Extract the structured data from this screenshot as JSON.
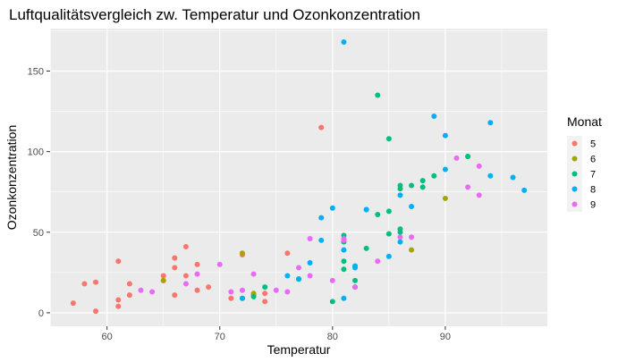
{
  "chart_data": {
    "type": "scatter",
    "title": "Luftqualitätsvergleich zw. Temperatur und Ozonkonzentration",
    "xlabel": "Temperatur",
    "ylabel": "Ozonkonzentration",
    "xlim": [
      54.95,
      99.05
    ],
    "ylim": [
      -8.35,
      176.35
    ],
    "x_ticks": [
      60,
      70,
      80,
      90
    ],
    "y_ticks": [
      0,
      50,
      100,
      150
    ],
    "grid": true,
    "legend": {
      "title": "Monat",
      "placement": "right"
    },
    "series": [
      {
        "name": "5",
        "color": "#F8766D",
        "points": [
          [
            57,
            6
          ],
          [
            58,
            18
          ],
          [
            59,
            1
          ],
          [
            59,
            19
          ],
          [
            61,
            8
          ],
          [
            61,
            4
          ],
          [
            61,
            32
          ],
          [
            62,
            11
          ],
          [
            62,
            18
          ],
          [
            65,
            23
          ],
          [
            65,
            20
          ],
          [
            66,
            34
          ],
          [
            66,
            28
          ],
          [
            66,
            11
          ],
          [
            67,
            23
          ],
          [
            67,
            41
          ],
          [
            68,
            30
          ],
          [
            68,
            14
          ],
          [
            69,
            16
          ],
          [
            71,
            9
          ],
          [
            72,
            36
          ],
          [
            74,
            12
          ],
          [
            74,
            7
          ],
          [
            76,
            37
          ],
          [
            79,
            115
          ]
        ]
      },
      {
        "name": "6",
        "color": "#A3A500",
        "points": [
          [
            65,
            20
          ],
          [
            72,
            37
          ],
          [
            73,
            12
          ],
          [
            73,
            11
          ],
          [
            77,
            21
          ],
          [
            87,
            39
          ],
          [
            90,
            71
          ]
        ]
      },
      {
        "name": "7",
        "color": "#00BF7D",
        "points": [
          [
            72,
            9
          ],
          [
            73,
            10
          ],
          [
            74,
            16
          ],
          [
            77,
            21
          ],
          [
            80,
            7
          ],
          [
            81,
            48
          ],
          [
            81,
            44
          ],
          [
            81,
            27
          ],
          [
            81,
            32
          ],
          [
            82,
            20
          ],
          [
            82,
            16
          ],
          [
            82,
            29
          ],
          [
            83,
            64
          ],
          [
            83,
            40
          ],
          [
            84,
            135
          ],
          [
            84,
            61
          ],
          [
            85,
            108
          ],
          [
            85,
            63
          ],
          [
            85,
            49
          ],
          [
            86,
            77
          ],
          [
            86,
            79
          ],
          [
            86,
            52
          ],
          [
            86,
            50
          ],
          [
            87,
            79
          ],
          [
            88,
            78
          ],
          [
            88,
            82
          ],
          [
            89,
            85
          ],
          [
            92,
            97
          ],
          [
            92,
            97
          ]
        ]
      },
      {
        "name": "8",
        "color": "#00B0F6",
        "points": [
          [
            72,
            9
          ],
          [
            76,
            23
          ],
          [
            77,
            21
          ],
          [
            78,
            31
          ],
          [
            79,
            59
          ],
          [
            79,
            45
          ],
          [
            80,
            65
          ],
          [
            81,
            168
          ],
          [
            81,
            9
          ],
          [
            81,
            39
          ],
          [
            82,
            28
          ],
          [
            82,
            29
          ],
          [
            83,
            64
          ],
          [
            85,
            35
          ],
          [
            86,
            73
          ],
          [
            86,
            44
          ],
          [
            87,
            66
          ],
          [
            89,
            122
          ],
          [
            90,
            89
          ],
          [
            90,
            110
          ],
          [
            94,
            85
          ],
          [
            94,
            118
          ],
          [
            96,
            84
          ],
          [
            97,
            76
          ]
        ]
      },
      {
        "name": "9",
        "color": "#E76BF3",
        "points": [
          [
            63,
            14
          ],
          [
            64,
            13
          ],
          [
            67,
            18
          ],
          [
            68,
            24
          ],
          [
            70,
            30
          ],
          [
            71,
            13
          ],
          [
            72,
            14
          ],
          [
            73,
            24
          ],
          [
            75,
            14
          ],
          [
            76,
            13
          ],
          [
            77,
            28
          ],
          [
            78,
            46
          ],
          [
            78,
            23
          ],
          [
            80,
            20
          ],
          [
            81,
            45
          ],
          [
            81,
            46
          ],
          [
            82,
            16
          ],
          [
            84,
            32
          ],
          [
            86,
            47
          ],
          [
            87,
            47
          ],
          [
            91,
            96
          ],
          [
            92,
            78
          ],
          [
            93,
            91
          ],
          [
            93,
            73
          ]
        ]
      }
    ]
  }
}
